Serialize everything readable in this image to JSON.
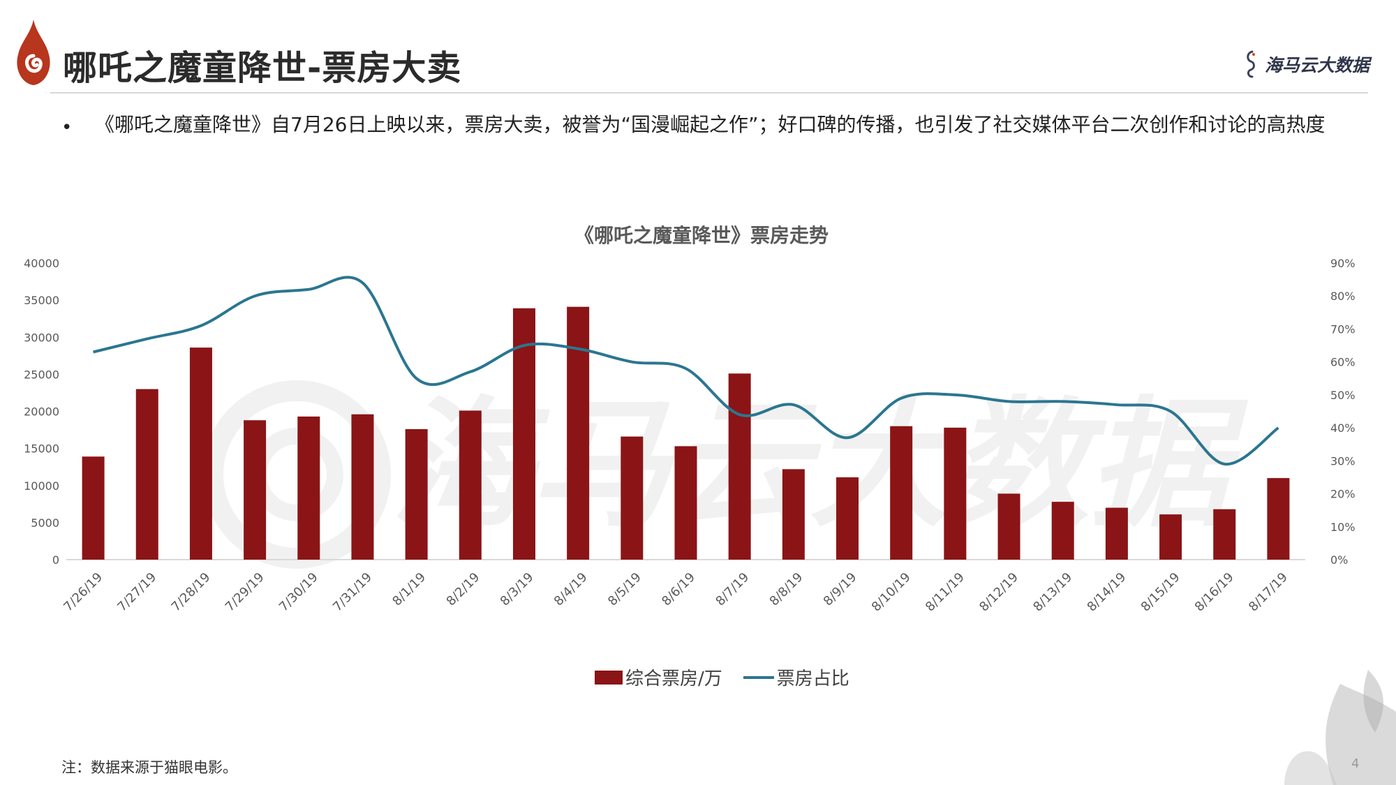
{
  "header": {
    "title": "哪吒之魔童降世-票房大卖",
    "brand": "海马云大数据"
  },
  "bullet": {
    "marker": "•",
    "text": "《哪吒之魔童降世》自7月26日上映以来，票房大卖，被誉为“国漫崛起之作”；好口碑的传播，也引发了社交媒体平台二次创作和讨论的高热度"
  },
  "chart_data": {
    "type": "bar",
    "title": "《哪吒之魔童降世》票房走势",
    "categories": [
      "7/26/19",
      "7/27/19",
      "7/28/19",
      "7/29/19",
      "7/30/19",
      "7/31/19",
      "8/1/19",
      "8/2/19",
      "8/3/19",
      "8/4/19",
      "8/5/19",
      "8/6/19",
      "8/7/19",
      "8/8/19",
      "8/9/19",
      "8/10/19",
      "8/11/19",
      "8/12/19",
      "8/13/19",
      "8/14/19",
      "8/15/19",
      "8/16/19",
      "8/17/19"
    ],
    "series": [
      {
        "name": "综合票房/万",
        "type": "bar",
        "axis": "left",
        "color": "#8b1416",
        "values": [
          13900,
          23000,
          28600,
          18800,
          19300,
          19600,
          17600,
          20100,
          33900,
          34100,
          16600,
          15300,
          25100,
          12200,
          11100,
          18000,
          17800,
          8900,
          7800,
          7000,
          6100,
          6800,
          11000
        ]
      },
      {
        "name": "票房占比",
        "type": "line",
        "axis": "right",
        "color": "#2b7690",
        "values": [
          0.63,
          0.67,
          0.71,
          0.8,
          0.82,
          0.84,
          0.55,
          0.57,
          0.65,
          0.64,
          0.6,
          0.58,
          0.44,
          0.47,
          0.37,
          0.49,
          0.5,
          0.48,
          0.48,
          0.47,
          0.45,
          0.29,
          0.4
        ]
      }
    ],
    "y_left": {
      "min": 0,
      "max": 40000,
      "ticks": [
        "0",
        "5000",
        "10000",
        "15000",
        "20000",
        "25000",
        "30000",
        "35000",
        "40000"
      ]
    },
    "y_right": {
      "min": 0,
      "max": 0.9,
      "ticks": [
        "0%",
        "10%",
        "20%",
        "30%",
        "40%",
        "50%",
        "60%",
        "70%",
        "80%",
        "90%"
      ]
    },
    "grid": false,
    "legend_position": "bottom"
  },
  "footnote": "注：数据来源于猫眼电影。",
  "page_number": "4",
  "watermark": "海马云大数据",
  "colors": {
    "accent_red": "#8b1416",
    "line_teal": "#2b7690",
    "logo_red": "#b8351e"
  }
}
